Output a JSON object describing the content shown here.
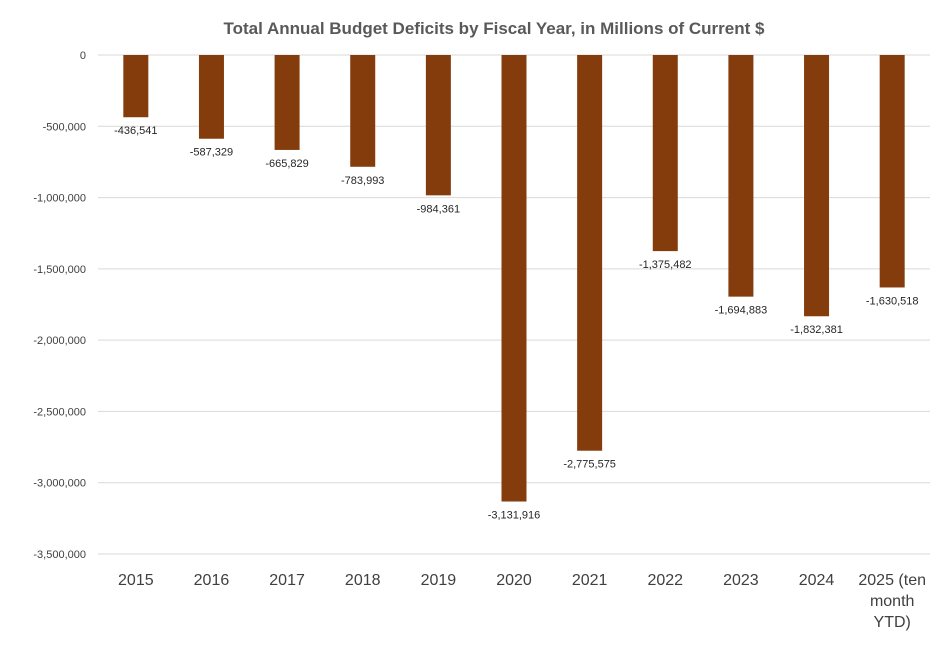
{
  "chart_data": {
    "type": "bar",
    "title": "Total Annual Budget Deficits by Fiscal Year, in Millions of Current $",
    "xlabel": "",
    "ylabel": "",
    "ylim": [
      -3500000,
      0
    ],
    "ytick_values": [
      0,
      -500000,
      -1000000,
      -1500000,
      -2000000,
      -2500000,
      -3000000,
      -3500000
    ],
    "ytick_labels": [
      "0",
      "-500,000",
      "-1,000,000",
      "-1,500,000",
      "-2,000,000",
      "-2,500,000",
      "-3,000,000",
      "-3,500,000"
    ],
    "categories": [
      "2015",
      "2016",
      "2017",
      "2018",
      "2019",
      "2020",
      "2021",
      "2022",
      "2023",
      "2024",
      "2025 (ten month YTD)"
    ],
    "category_lines": [
      [
        "2015"
      ],
      [
        "2016"
      ],
      [
        "2017"
      ],
      [
        "2018"
      ],
      [
        "2019"
      ],
      [
        "2020"
      ],
      [
        "2021"
      ],
      [
        "2022"
      ],
      [
        "2023"
      ],
      [
        "2024"
      ],
      [
        "2025 (ten",
        "month",
        "YTD)"
      ]
    ],
    "values": [
      -436541,
      -587329,
      -665829,
      -783993,
      -984361,
      -3131916,
      -2775575,
      -1375482,
      -1694883,
      -1832381,
      -1630518
    ],
    "value_labels": [
      "-436,541",
      "-587,329",
      "-665,829",
      "-783,993",
      "-984,361",
      "-3,131,916",
      "-2,775,575",
      "-1,375,482",
      "-1,694,883",
      "-1,832,381",
      "-1,630,518"
    ],
    "bar_color": "#843C0C",
    "grid": true,
    "legend": "none"
  }
}
